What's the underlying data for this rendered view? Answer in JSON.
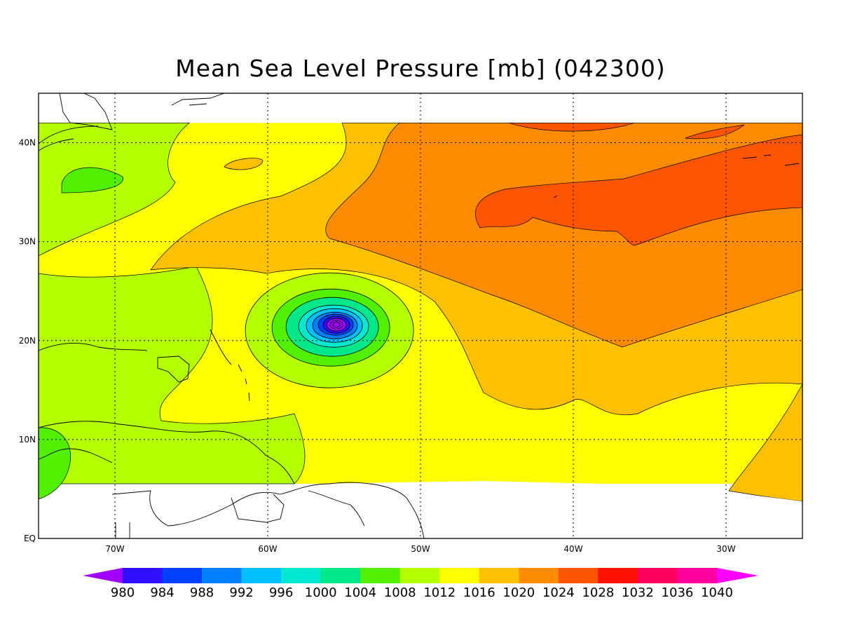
{
  "title": "Mean Sea Level Pressure [mb] (042300)",
  "map": {
    "lon_range": [
      -75,
      -25
    ],
    "lat_range": [
      0,
      45
    ],
    "data_lat_top": 42,
    "lon_ticks": [
      {
        "value": -70,
        "label": "70W"
      },
      {
        "value": -60,
        "label": "60W"
      },
      {
        "value": -50,
        "label": "50W"
      },
      {
        "value": -40,
        "label": "40W"
      },
      {
        "value": -30,
        "label": "30W"
      }
    ],
    "lat_ticks": [
      {
        "value": 0,
        "label": "EQ"
      },
      {
        "value": 10,
        "label": "10N"
      },
      {
        "value": 20,
        "label": "20N"
      },
      {
        "value": 30,
        "label": "30N"
      },
      {
        "value": 40,
        "label": "40N"
      }
    ],
    "grid": "dotted",
    "low_center": {
      "lon": -55.5,
      "lat": 21.6
    }
  },
  "colorbar": {
    "levels": [
      "980",
      "984",
      "988",
      "992",
      "996",
      "1000",
      "1004",
      "1008",
      "1012",
      "1016",
      "1020",
      "1024",
      "1028",
      "1032",
      "1036",
      "1040"
    ],
    "colors": [
      "#a000ff",
      "#3010ff",
      "#0040ff",
      "#0080ff",
      "#00c0ff",
      "#00e8d0",
      "#00e88a",
      "#50f000",
      "#b4ff00",
      "#ffff00",
      "#ffc000",
      "#ff8c00",
      "#ff5500",
      "#ff1000",
      "#ff0060",
      "#ff00a0",
      "#ff00ff"
    ]
  },
  "palette": {
    "c1004": "#50f000",
    "c1008": "#b4ff00",
    "c1012": "#ffff00",
    "c1016": "#ffc000",
    "c1020": "#ff8c00",
    "c1024": "#ff5500",
    "c1028": "#ff1000"
  }
}
